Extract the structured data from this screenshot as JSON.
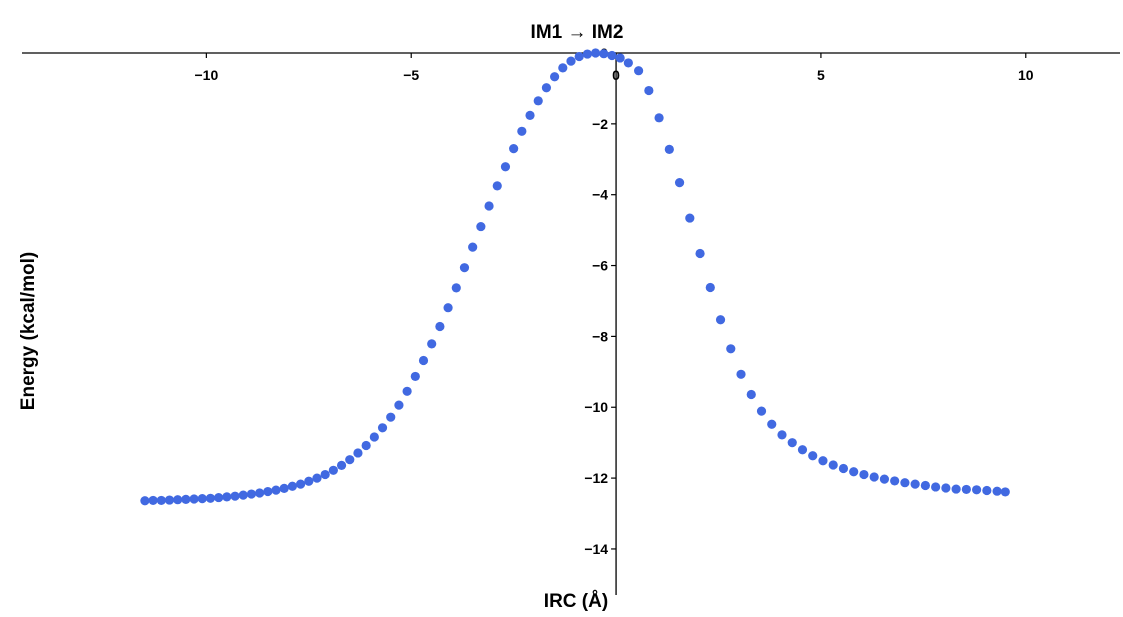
{
  "chart_data": {
    "type": "scatter",
    "title": "IM1 → IM2",
    "xlabel": "IRC (Å)",
    "ylabel": "Energy (kcal/mol)",
    "xlim": [
      -14.5,
      12.3
    ],
    "ylim": [
      -15.3,
      0.0
    ],
    "x_ticks": [
      -10,
      -5,
      0,
      5,
      10
    ],
    "y_ticks": [
      0,
      -2,
      -4,
      -6,
      -8,
      -10,
      -12,
      -14
    ],
    "x_tick_labels": [
      "−10",
      "−5",
      "0",
      "5",
      "10"
    ],
    "y_tick_labels": [
      "0",
      "−2",
      "−4",
      "−6",
      "−8",
      "−10",
      "−12",
      "−14"
    ],
    "grid": false,
    "marker_color": "#4169E1",
    "series": [
      {
        "x": [
          -11.5,
          -11.3,
          -11.1,
          -10.9,
          -10.7,
          -10.5,
          -10.3,
          -10.1,
          -9.9,
          -9.7,
          -9.5,
          -9.3,
          -9.1,
          -8.9,
          -8.7,
          -8.5,
          -8.3,
          -8.1,
          -7.9,
          -7.7,
          -7.5,
          -7.3,
          -7.1,
          -6.9,
          -6.7,
          -6.5,
          -6.3,
          -6.1,
          -5.9,
          -5.7,
          -5.5,
          -5.3,
          -5.1,
          -4.9,
          -4.7,
          -4.5,
          -4.3,
          -4.1,
          -3.9,
          -3.7,
          -3.5,
          -3.3,
          -3.1,
          -2.9,
          -2.7,
          -2.5,
          -2.3,
          -2.1,
          -1.9,
          -1.7,
          -1.5,
          -1.3,
          -1.1,
          -0.9,
          -0.7,
          -0.5,
          -0.3,
          -0.1,
          0.1,
          0.3,
          0.55,
          0.8,
          1.05,
          1.3,
          1.55,
          1.8,
          2.05,
          2.3,
          2.55,
          2.8,
          3.05,
          3.3,
          3.55,
          3.8,
          4.05,
          4.3,
          4.55,
          4.8,
          5.05,
          5.3,
          5.55,
          5.8,
          6.05,
          6.3,
          6.55,
          6.8,
          7.05,
          7.3,
          7.55,
          7.8,
          8.05,
          8.3,
          8.55,
          8.8,
          9.05,
          9.3,
          9.5
        ],
        "y": [
          -12.64,
          -12.63,
          -12.63,
          -12.62,
          -12.61,
          -12.6,
          -12.59,
          -12.58,
          -12.57,
          -12.55,
          -12.53,
          -12.51,
          -12.48,
          -12.45,
          -12.42,
          -12.38,
          -12.34,
          -12.29,
          -12.23,
          -12.17,
          -12.09,
          -12.0,
          -11.9,
          -11.78,
          -11.64,
          -11.48,
          -11.29,
          -11.08,
          -10.84,
          -10.58,
          -10.28,
          -9.94,
          -9.55,
          -9.13,
          -8.68,
          -8.21,
          -7.72,
          -7.19,
          -6.63,
          -6.06,
          -5.48,
          -4.9,
          -4.32,
          -3.75,
          -3.21,
          -2.7,
          -2.21,
          -1.76,
          -1.35,
          -0.98,
          -0.67,
          -0.42,
          -0.23,
          -0.1,
          -0.03,
          0.0,
          -0.02,
          -0.07,
          -0.14,
          -0.28,
          -0.5,
          -1.06,
          -1.83,
          -2.72,
          -3.66,
          -4.66,
          -5.66,
          -6.62,
          -7.53,
          -8.35,
          -9.07,
          -9.64,
          -10.11,
          -10.48,
          -10.78,
          -11.0,
          -11.2,
          -11.37,
          -11.51,
          -11.63,
          -11.73,
          -11.82,
          -11.9,
          -11.97,
          -12.03,
          -12.08,
          -12.13,
          -12.17,
          -12.21,
          -12.25,
          -12.28,
          -12.31,
          -12.32,
          -12.33,
          -12.35,
          -12.37,
          -12.39
        ]
      }
    ]
  }
}
